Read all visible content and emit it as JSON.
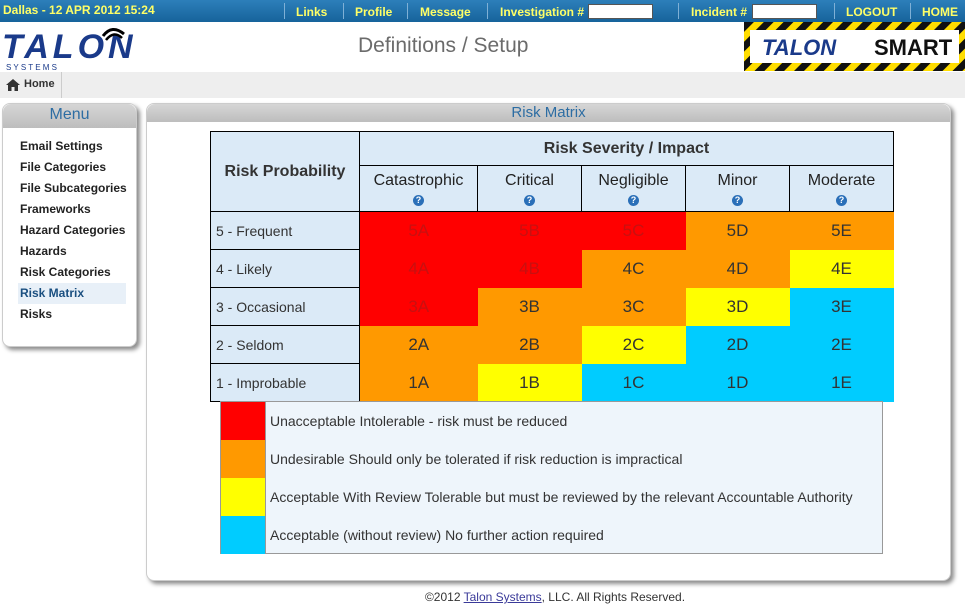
{
  "topbar": {
    "datetime": "Dallas - 12 APR 2012 15:24",
    "links": "Links",
    "profile": "Profile",
    "message": "Message",
    "investigation_label": "Investigation #",
    "investigation_value": "",
    "incident_label": "Incident #",
    "incident_value": "",
    "logout": "LOGOUT",
    "home": "HOME"
  },
  "header": {
    "logo_text": "TALON",
    "logo_sub": "S Y S T E M S",
    "page_title": "Definitions / Setup",
    "smart_logo_left": "TALON",
    "smart_logo_right": "SMART"
  },
  "breadcrumb": {
    "home": "Home"
  },
  "menu": {
    "title": "Menu",
    "items": [
      "Email Settings",
      "File Categories",
      "File Subcategories",
      "Frameworks",
      "Hazard Categories",
      "Hazards",
      "Risk Categories",
      "Risk Matrix",
      "Risks"
    ],
    "active_index": 7
  },
  "content": {
    "title": "Risk Matrix",
    "probability_header": "Risk Probability",
    "severity_header": "Risk Severity / Impact",
    "columns": [
      "Catastrophic",
      "Critical",
      "Negligible",
      "Minor",
      "Moderate"
    ],
    "help_glyph": "?",
    "rows": [
      {
        "label": "5 - Frequent",
        "cells": [
          "5A",
          "5B",
          "5C",
          "5D",
          "5E"
        ],
        "colors": [
          "red",
          "red",
          "red",
          "orange",
          "orange"
        ]
      },
      {
        "label": "4 - Likely",
        "cells": [
          "4A",
          "4B",
          "4C",
          "4D",
          "4E"
        ],
        "colors": [
          "red",
          "red",
          "orange",
          "orange",
          "yellow"
        ]
      },
      {
        "label": "3 - Occasional",
        "cells": [
          "3A",
          "3B",
          "3C",
          "3D",
          "3E"
        ],
        "colors": [
          "red",
          "orange",
          "orange",
          "yellow",
          "cyan"
        ]
      },
      {
        "label": "2 - Seldom",
        "cells": [
          "2A",
          "2B",
          "2C",
          "2D",
          "2E"
        ],
        "colors": [
          "orange",
          "orange",
          "yellow",
          "cyan",
          "cyan"
        ]
      },
      {
        "label": "1 - Improbable",
        "cells": [
          "1A",
          "1B",
          "1C",
          "1D",
          "1E"
        ],
        "colors": [
          "orange",
          "yellow",
          "cyan",
          "cyan",
          "cyan"
        ]
      }
    ],
    "legend": [
      {
        "color": "#ff0000",
        "text": "Unacceptable Intolerable - risk must be reduced"
      },
      {
        "color": "#ff9900",
        "text": "Undesirable Should only be tolerated if risk reduction is impractical"
      },
      {
        "color": "#ffff00",
        "text": "Acceptable With Review Tolerable but must be reviewed by the relevant Accountable Authority"
      },
      {
        "color": "#00ccff",
        "text": "Acceptable (without review) No further action required"
      }
    ]
  },
  "footer": {
    "prefix": "©2012 ",
    "company": "Talon Systems",
    "suffix": ", LLC. All Rights Reserved."
  }
}
